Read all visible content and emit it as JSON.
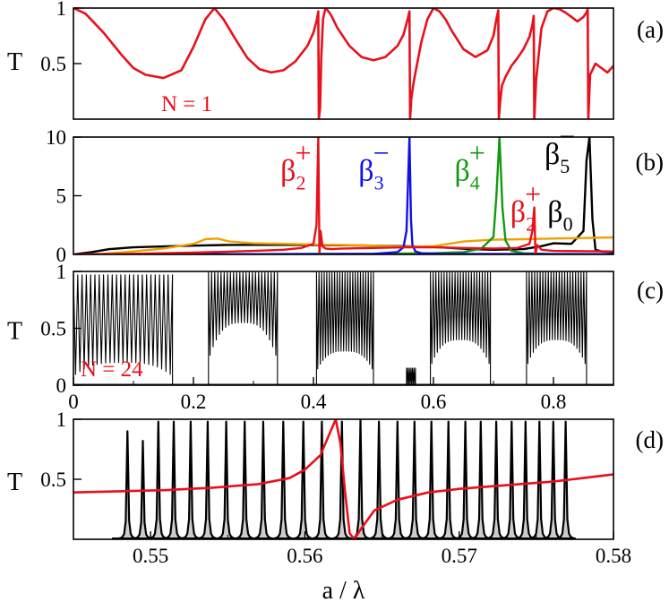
{
  "chart_data": [
    {
      "panel": "(a)",
      "type": "line",
      "ylabel": "T",
      "xlim": [
        0,
        0.9
      ],
      "ylim": [
        0,
        1
      ],
      "yticks": [
        {
          "v": 0.5,
          "label": "0.5"
        },
        {
          "v": 1,
          "label": "1"
        }
      ],
      "annotation": "N = 1",
      "series": [
        {
          "name": "N = 1",
          "color": "#e8101a",
          "x": [
            0,
            0.02,
            0.05,
            0.08,
            0.1,
            0.12,
            0.15,
            0.18,
            0.2,
            0.22,
            0.235,
            0.25,
            0.27,
            0.29,
            0.31,
            0.33,
            0.35,
            0.37,
            0.39,
            0.4,
            0.405,
            0.408,
            0.409,
            0.411,
            0.413,
            0.416,
            0.42,
            0.425,
            0.43,
            0.44,
            0.46,
            0.48,
            0.5,
            0.52,
            0.54,
            0.55,
            0.557,
            0.56,
            0.561,
            0.563,
            0.566,
            0.57,
            0.58,
            0.59,
            0.6,
            0.61,
            0.62,
            0.63,
            0.65,
            0.67,
            0.69,
            0.7,
            0.705,
            0.708,
            0.709,
            0.711,
            0.714,
            0.72,
            0.73,
            0.74,
            0.75,
            0.76,
            0.765,
            0.767,
            0.768,
            0.771,
            0.78,
            0.79,
            0.8,
            0.81,
            0.82,
            0.83,
            0.84,
            0.85,
            0.855,
            0.857,
            0.858,
            0.861,
            0.87,
            0.88,
            0.89,
            0.9
          ],
          "y": [
            1,
            0.95,
            0.78,
            0.58,
            0.46,
            0.4,
            0.37,
            0.44,
            0.65,
            0.9,
            1.0,
            0.9,
            0.72,
            0.55,
            0.45,
            0.42,
            0.44,
            0.52,
            0.66,
            0.78,
            0.88,
            0.97,
            0.0,
            0.1,
            0.55,
            0.9,
            1.0,
            0.97,
            0.93,
            0.82,
            0.66,
            0.56,
            0.53,
            0.56,
            0.66,
            0.76,
            0.9,
            0.97,
            0.0,
            0.18,
            0.3,
            0.42,
            0.7,
            0.9,
            1.0,
            0.97,
            0.9,
            0.8,
            0.63,
            0.56,
            0.62,
            0.75,
            0.9,
            0.98,
            0.0,
            0.15,
            0.3,
            0.38,
            0.48,
            0.55,
            0.63,
            0.74,
            0.85,
            0.93,
            0.0,
            0.35,
            0.82,
            0.97,
            1.0,
            0.99,
            0.96,
            0.92,
            0.88,
            0.92,
            0.96,
            0.99,
            0.0,
            0.4,
            0.5,
            0.46,
            0.42,
            0.48
          ]
        }
      ]
    },
    {
      "panel": "(b)",
      "type": "line",
      "ylabel": "",
      "xlim": [
        0,
        0.9
      ],
      "ylim": [
        0,
        10
      ],
      "yticks": [
        {
          "v": 0,
          "label": "0"
        },
        {
          "v": 5,
          "label": "5"
        },
        {
          "v": 10,
          "label": "10"
        }
      ],
      "annotations": [
        {
          "base": "β",
          "sub": "2",
          "sup": "+",
          "color": "#e8101a",
          "x": 0.345,
          "y": 6.3
        },
        {
          "base": "β",
          "sub": "3",
          "sup": "−",
          "color": "#1010e8",
          "x": 0.475,
          "y": 6.3
        },
        {
          "base": "β",
          "sub": "4",
          "sup": "+",
          "color": "#119911",
          "x": 0.635,
          "y": 6.3
        },
        {
          "base": "β",
          "sub": "5",
          "sup": "−",
          "color": "#000000",
          "x": 0.785,
          "y": 7.7
        },
        {
          "base": "β",
          "sub": "2",
          "sup": "+",
          "color": "#e8101a",
          "x": 0.728,
          "y": 2.8
        },
        {
          "base": "β",
          "sub": "0",
          "sup": "",
          "color": "#000000",
          "x": 0.79,
          "y": 2.8
        }
      ],
      "series": [
        {
          "name": "β0",
          "color": "#000000",
          "x": [
            0,
            0.03,
            0.06,
            0.1,
            0.15,
            0.2,
            0.25,
            0.3,
            0.35,
            0.4,
            0.45,
            0.5,
            0.55,
            0.6,
            0.63,
            0.66,
            0.7,
            0.75,
            0.78,
            0.8,
            0.83,
            0.85,
            0.855,
            0.86,
            0.865,
            0.87,
            0.88,
            0.9
          ],
          "y": [
            0,
            0.2,
            0.45,
            0.6,
            0.68,
            0.75,
            0.8,
            0.82,
            0.82,
            0.8,
            0.78,
            0.75,
            0.7,
            0.65,
            0.55,
            0.45,
            0.4,
            0.45,
            0.7,
            0.95,
            0.9,
            2.0,
            8.0,
            10.0,
            3.0,
            0.4,
            0.25,
            0.2
          ]
        },
        {
          "name": "orange",
          "color": "#f0a000",
          "x": [
            0,
            0.05,
            0.1,
            0.15,
            0.2,
            0.22,
            0.24,
            0.26,
            0.3,
            0.35,
            0.4,
            0.45,
            0.5,
            0.55,
            0.6,
            0.65,
            0.7,
            0.75,
            0.8,
            0.85,
            0.9
          ],
          "y": [
            0,
            0.05,
            0.25,
            0.5,
            0.9,
            1.3,
            1.35,
            1.1,
            0.95,
            0.9,
            0.85,
            0.8,
            0.75,
            0.65,
            0.7,
            1.1,
            1.25,
            1.3,
            1.35,
            1.4,
            1.45
          ]
        },
        {
          "name": "β4+",
          "color": "#119911",
          "x": [
            0,
            0.3,
            0.5,
            0.6,
            0.65,
            0.68,
            0.7,
            0.705,
            0.71,
            0.715,
            0.72,
            0.73,
            0.75,
            0.8,
            0.9
          ],
          "y": [
            0,
            0.02,
            0.05,
            0.1,
            0.2,
            0.5,
            1.5,
            5.0,
            10.0,
            4.0,
            1.2,
            0.3,
            0.1,
            0.03,
            0.02
          ]
        },
        {
          "name": "β3−",
          "color": "#1010e8",
          "x": [
            0,
            0.3,
            0.5,
            0.54,
            0.55,
            0.555,
            0.56,
            0.5625,
            0.565,
            0.57,
            0.58,
            0.62,
            0.9
          ],
          "y": [
            0,
            0.02,
            0.05,
            0.2,
            0.6,
            2.0,
            10.0,
            3.0,
            0.8,
            0.25,
            0.1,
            0.04,
            0.02
          ]
        },
        {
          "name": "β2+",
          "color": "#e8101a",
          "x": [
            0,
            0.1,
            0.2,
            0.3,
            0.35,
            0.38,
            0.4,
            0.405,
            0.408,
            0.41,
            0.412,
            0.415,
            0.42,
            0.43,
            0.45,
            0.5,
            0.55,
            0.6,
            0.65,
            0.7,
            0.74,
            0.76,
            0.765,
            0.768,
            0.77,
            0.773,
            0.78,
            0.8,
            0.9
          ],
          "y": [
            0,
            0.05,
            0.15,
            0.3,
            0.4,
            0.55,
            0.9,
            2.5,
            10.0,
            0.0,
            2.0,
            0.7,
            0.5,
            0.45,
            0.5,
            0.55,
            0.6,
            0.6,
            0.55,
            0.5,
            0.55,
            0.9,
            2.0,
            4.0,
            0.0,
            0.8,
            0.4,
            0.3,
            0.25
          ]
        }
      ]
    },
    {
      "panel": "(c)",
      "type": "line",
      "ylabel": "T",
      "xlim": [
        0,
        0.9
      ],
      "ylim": [
        0,
        1
      ],
      "yticks": [
        {
          "v": 0,
          "label": "0"
        },
        {
          "v": 0.5,
          "label": "0.5"
        },
        {
          "v": 1,
          "label": "1"
        }
      ],
      "xticks": [
        {
          "v": 0,
          "label": "0"
        },
        {
          "v": 0.2,
          "label": "0.2"
        },
        {
          "v": 0.4,
          "label": "0.4"
        },
        {
          "v": 0.6,
          "label": "0.6"
        },
        {
          "v": 0.8,
          "label": "0.8"
        }
      ],
      "annotation": "N = 24",
      "bands": [
        {
          "x0": 0.0,
          "x1": 0.165,
          "peaks": 23,
          "envTop": 0.97,
          "envBottom": 0.2
        },
        {
          "x0": 0.225,
          "x1": 0.34,
          "peaks": 22,
          "envTop": 0.99,
          "envBottom": 0.55
        },
        {
          "x0": 0.405,
          "x1": 0.5,
          "peaks": 22,
          "envTop": 0.99,
          "envBottom": 0.3
        },
        {
          "x0": 0.555,
          "x1": 0.57,
          "peaks": 6,
          "envTop": 0.15,
          "envBottom": 0.0
        },
        {
          "x0": 0.595,
          "x1": 0.695,
          "peaks": 22,
          "envTop": 0.99,
          "envBottom": 0.4
        },
        {
          "x0": 0.755,
          "x1": 0.855,
          "peaks": 22,
          "envTop": 1.0,
          "envBottom": 0.4
        }
      ]
    },
    {
      "panel": "(d)",
      "type": "line",
      "ylabel": "T",
      "xlabel": "a / λ",
      "xlim": [
        0.545,
        0.58
      ],
      "ylim": [
        0,
        1
      ],
      "yticks": [
        {
          "v": 0.5,
          "label": "0.5"
        },
        {
          "v": 1,
          "label": "1"
        }
      ],
      "xticks": [
        {
          "v": 0.55,
          "label": "0.55"
        },
        {
          "v": 0.56,
          "label": "0.56"
        },
        {
          "v": 0.57,
          "label": "0.57"
        },
        {
          "v": 0.58,
          "label": "0.58"
        }
      ],
      "peaks_x": [
        0.5485,
        0.5495,
        0.5505,
        0.5515,
        0.5526,
        0.5537,
        0.5549,
        0.5561,
        0.5573,
        0.5586,
        0.5599,
        0.5611,
        0.5624,
        0.5636,
        0.5648,
        0.566,
        0.5671,
        0.5682,
        0.5693,
        0.5704,
        0.5714,
        0.5724,
        0.5734,
        0.5743,
        0.5752,
        0.5761,
        0.5769
      ],
      "peaks_h": [
        0.9,
        0.82,
        0.98,
        0.98,
        0.98,
        0.98,
        0.98,
        0.98,
        0.98,
        0.98,
        0.98,
        0.98,
        0.98,
        1.0,
        0.98,
        0.98,
        0.98,
        0.98,
        0.98,
        0.98,
        0.98,
        0.98,
        0.98,
        0.98,
        0.98,
        0.98,
        0.98
      ],
      "series": [
        {
          "name": "N = 1",
          "color": "#e8101a",
          "x": [
            0.545,
            0.548,
            0.551,
            0.554,
            0.557,
            0.559,
            0.56,
            0.561,
            0.5615,
            0.562,
            0.5623,
            0.5626,
            0.5629,
            0.5632,
            0.5636,
            0.5645,
            0.566,
            0.568,
            0.57,
            0.573,
            0.576,
            0.578,
            0.58
          ],
          "y": [
            0.39,
            0.4,
            0.41,
            0.43,
            0.46,
            0.51,
            0.58,
            0.7,
            0.85,
            1.0,
            0.8,
            0.4,
            0.05,
            0.0,
            0.08,
            0.24,
            0.33,
            0.39,
            0.42,
            0.45,
            0.48,
            0.51,
            0.54
          ]
        }
      ]
    }
  ],
  "panel_labels": [
    "(a)",
    "(b)",
    "(c)",
    "(d)"
  ]
}
